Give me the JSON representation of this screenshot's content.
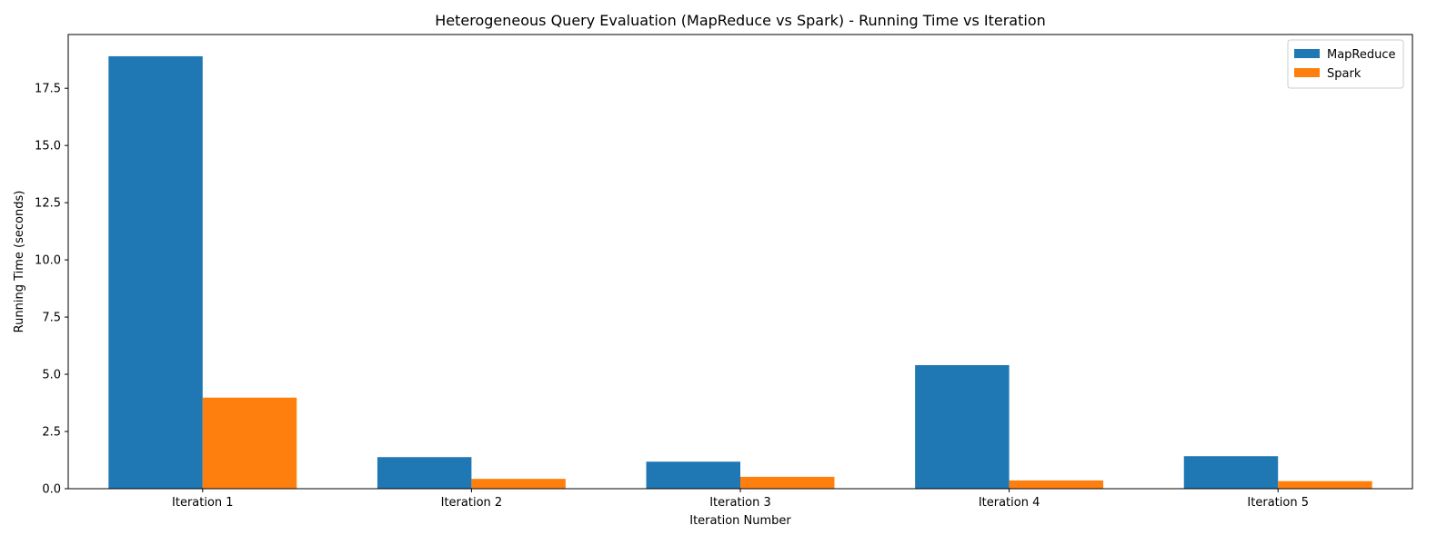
{
  "chart_data": {
    "type": "bar",
    "title": "Heterogeneous Query Evaluation (MapReduce vs Spark) - Running Time vs Iteration",
    "xlabel": "Iteration Number",
    "ylabel": "Running Time (seconds)",
    "categories": [
      "Iteration 1",
      "Iteration 2",
      "Iteration 3",
      "Iteration 4",
      "Iteration 5"
    ],
    "series": [
      {
        "name": "MapReduce",
        "color": "#1f77b4",
        "values": [
          18.9,
          1.38,
          1.18,
          5.4,
          1.42
        ]
      },
      {
        "name": "Spark",
        "color": "#ff7f0e",
        "values": [
          3.98,
          0.43,
          0.52,
          0.36,
          0.33
        ]
      }
    ],
    "ylim": [
      0,
      19.85
    ],
    "yticks": [
      0.0,
      2.5,
      5.0,
      7.5,
      10.0,
      12.5,
      15.0,
      17.5
    ],
    "ytick_labels": [
      "0.0",
      "2.5",
      "5.0",
      "7.5",
      "10.0",
      "12.5",
      "15.0",
      "17.5"
    ],
    "grid": false,
    "legend_position": "top-right"
  }
}
